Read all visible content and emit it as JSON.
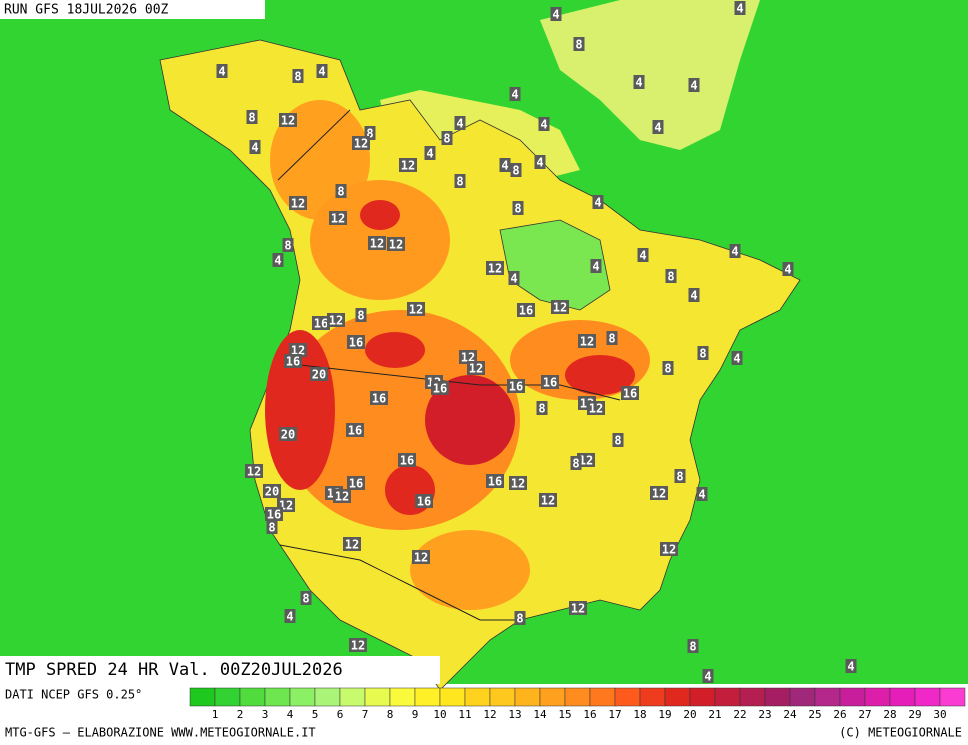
{
  "header": {
    "run": "RUN GFS 18JUL2026 00Z"
  },
  "map": {
    "title": "TMP SPRED 24 HR Val. 00Z20JUL2026",
    "labels": [
      4,
      4,
      8,
      4,
      8,
      4,
      4,
      4,
      4,
      8,
      12,
      4,
      4,
      4,
      8,
      12,
      8,
      4,
      4,
      12,
      4,
      8,
      4,
      8,
      8,
      12,
      12,
      4,
      8,
      12,
      12,
      8,
      4,
      12,
      4,
      4,
      4,
      4,
      4,
      8,
      4,
      12,
      16,
      12,
      8,
      16,
      12,
      8,
      12,
      16,
      12,
      8,
      4,
      16,
      12,
      12,
      8,
      20,
      12,
      16,
      16,
      16,
      16,
      16,
      8,
      12,
      12,
      8,
      20,
      16,
      16,
      12,
      8,
      12,
      16,
      12,
      8,
      16,
      12,
      12,
      20,
      12,
      16,
      12,
      12,
      4,
      16,
      8,
      12,
      12,
      12,
      8,
      4,
      12,
      8,
      12,
      8,
      4,
      4
    ]
  },
  "scale": {
    "values": [
      1,
      2,
      3,
      4,
      5,
      6,
      7,
      8,
      9,
      10,
      11,
      12,
      13,
      14,
      15,
      16,
      17,
      18,
      19,
      20,
      21,
      22,
      23,
      24,
      25,
      26,
      27,
      28,
      29,
      30
    ],
    "colors": [
      "#1ec81e",
      "#32d232",
      "#50dc3c",
      "#6ee650",
      "#8cf064",
      "#aaf578",
      "#c8fa6e",
      "#e6fa50",
      "#fafa3c",
      "#fff028",
      "#ffe61e",
      "#ffd21e",
      "#ffc81e",
      "#ffb41e",
      "#ffa01e",
      "#ff8c1e",
      "#ff781e",
      "#ff5a1e",
      "#f03c1e",
      "#e1281e",
      "#d21e28",
      "#c31e3c",
      "#b41e50",
      "#a51e64",
      "#a0287a",
      "#b4288c",
      "#c81e9b",
      "#dc1eaa",
      "#e61eb9",
      "#f028c8",
      "#fa3cd2"
    ]
  },
  "footer": {
    "source": "DATI NCEP GFS 0.25°",
    "credit": "MTG-GFS — ELABORAZIONE WWW.METEOGIORNALE.IT",
    "copyright": "(C) METEOGIORNALE"
  }
}
